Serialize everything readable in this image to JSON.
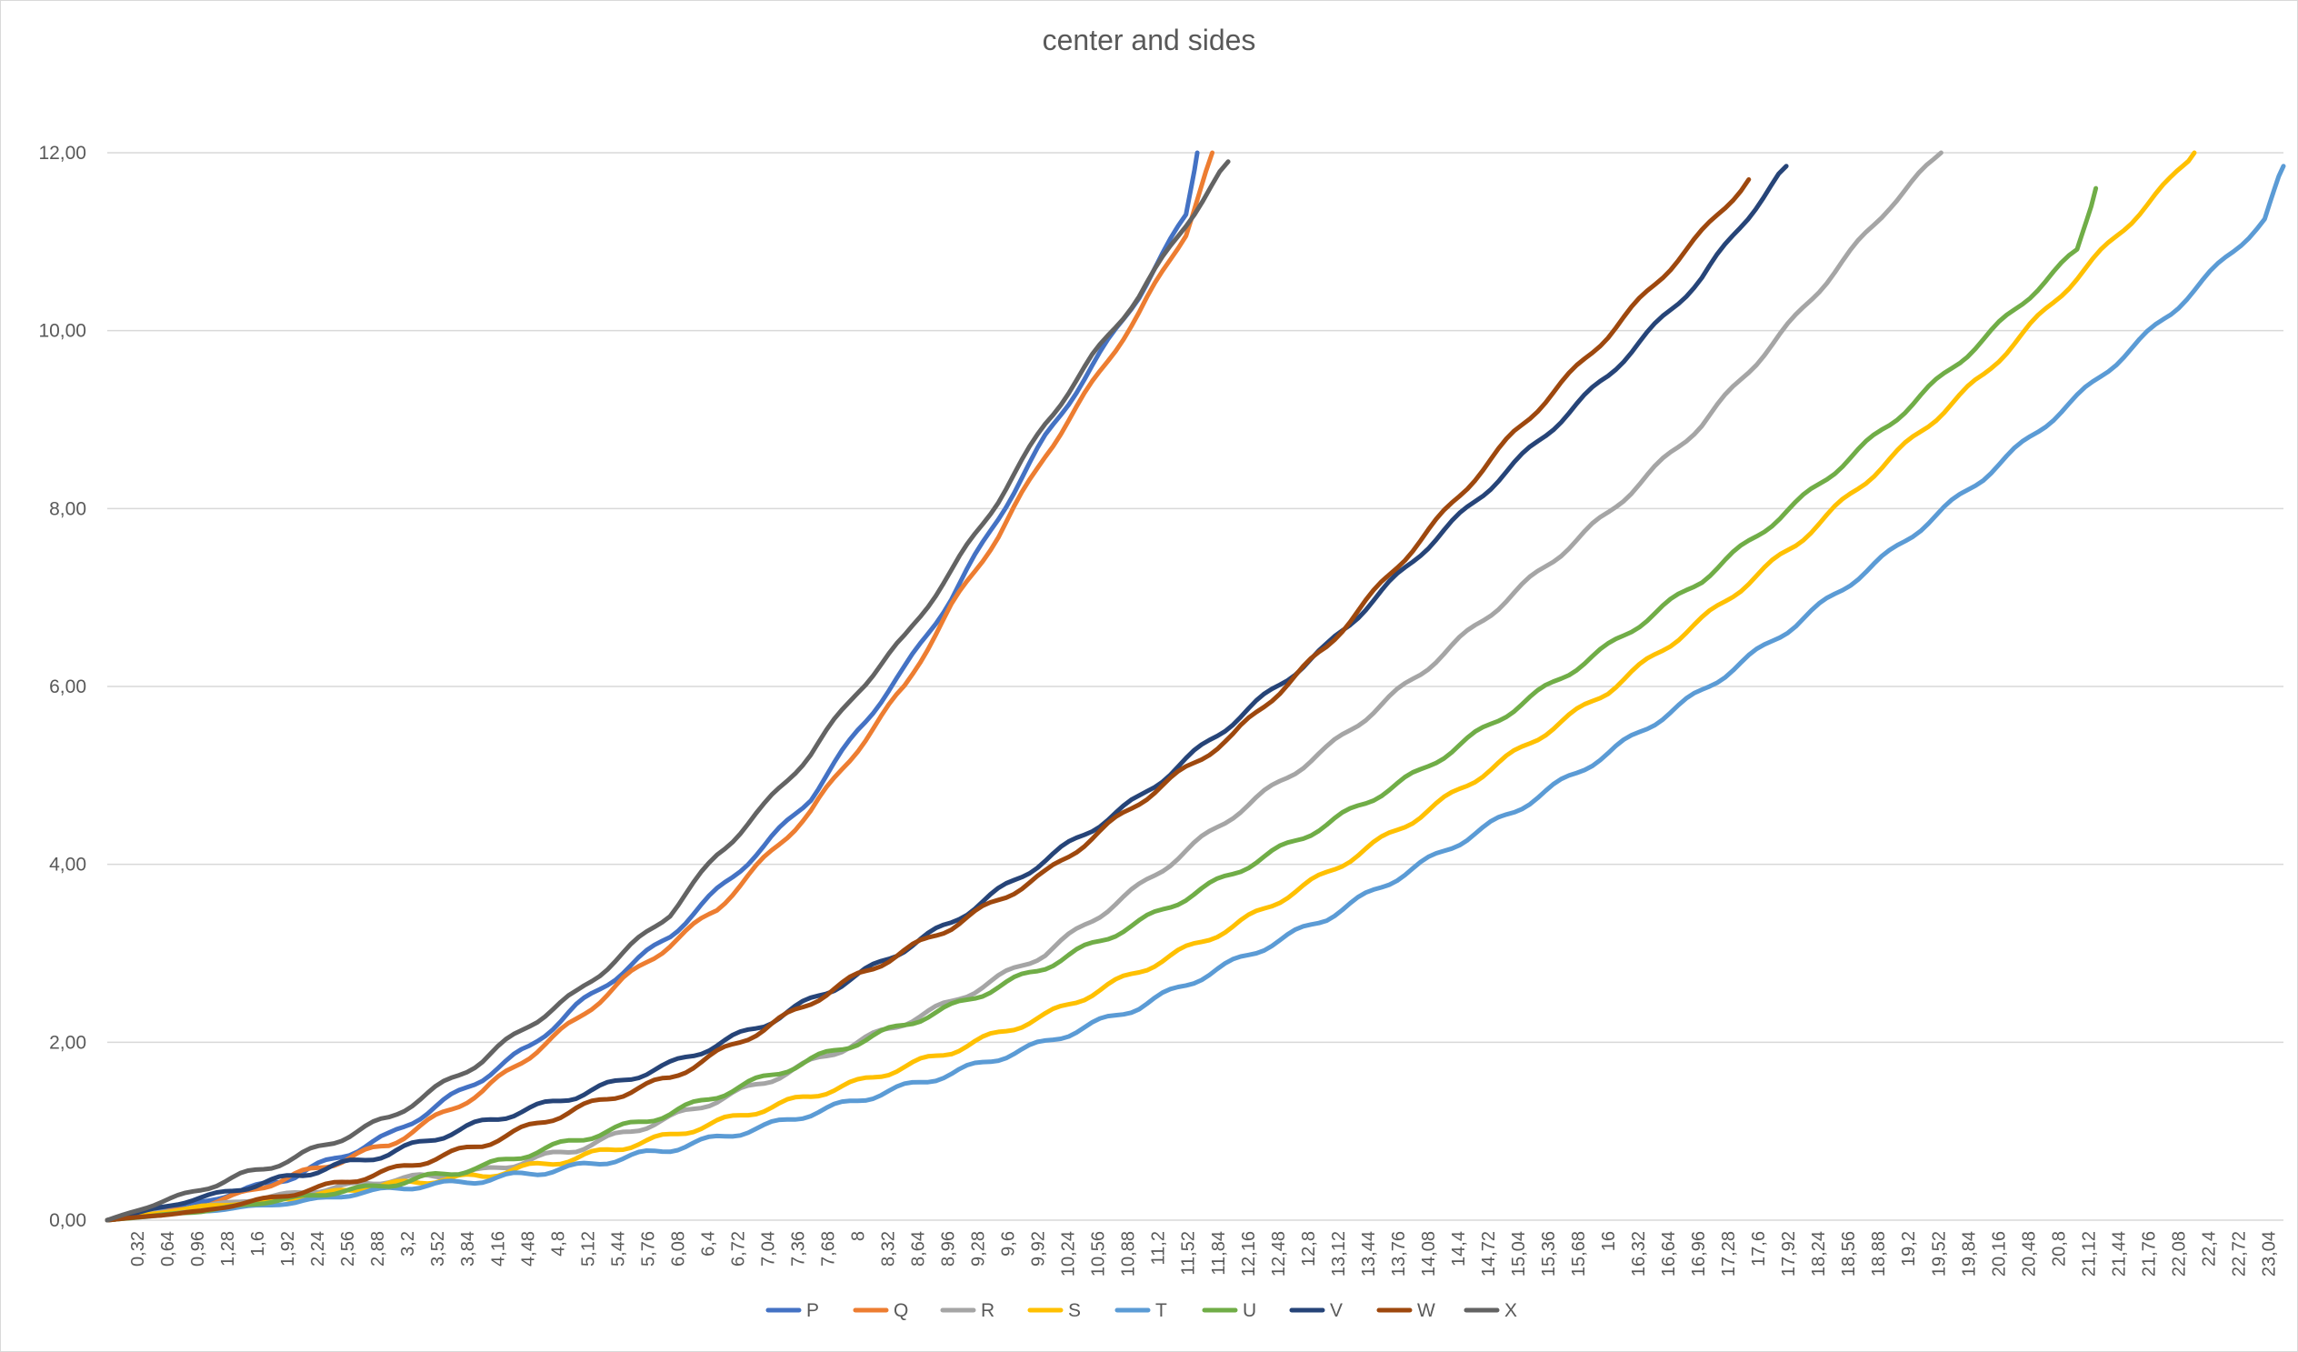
{
  "chart_data": {
    "type": "line",
    "title": "center and sides",
    "xlabel": "",
    "ylabel": "",
    "ylim": [
      0,
      12
    ],
    "xlim": [
      0,
      23.2
    ],
    "grid": true,
    "legend_position": "bottom",
    "y_ticks": [
      "0,00",
      "2,00",
      "4,00",
      "6,00",
      "8,00",
      "10,00",
      "12,00"
    ],
    "x_ticks": [
      "0,32",
      "0,64",
      "0,96",
      "1,28",
      "1,6",
      "1,92",
      "2,24",
      "2,56",
      "2,88",
      "3,2",
      "3,52",
      "3,84",
      "4,16",
      "4,48",
      "4,8",
      "5,12",
      "5,44",
      "5,76",
      "6,08",
      "6,4",
      "6,72",
      "7,04",
      "7,36",
      "7,68",
      "8",
      "8,32",
      "8,64",
      "8,96",
      "9,28",
      "9,6",
      "9,92",
      "10,24",
      "10,56",
      "10,88",
      "11,2",
      "11,52",
      "11,84",
      "12,16",
      "12,48",
      "12,8",
      "13,12",
      "13,44",
      "13,76",
      "14,08",
      "14,4",
      "14,72",
      "15,04",
      "15,36",
      "15,68",
      "16",
      "16,32",
      "16,64",
      "16,96",
      "17,28",
      "17,6",
      "17,92",
      "18,24",
      "18,56",
      "18,88",
      "19,2",
      "19,52",
      "19,84",
      "20,16",
      "20,48",
      "20,8",
      "21,12",
      "21,44",
      "21,76",
      "22,08",
      "22,4",
      "22,72",
      "23,04"
    ],
    "series": [
      {
        "name": "P",
        "color": "#4472C4",
        "points": [
          [
            0,
            0
          ],
          [
            1,
            0.2
          ],
          [
            2,
            0.5
          ],
          [
            3,
            0.95
          ],
          [
            4,
            1.6
          ],
          [
            4.5,
            1.95
          ],
          [
            5,
            2.4
          ],
          [
            5.5,
            2.8
          ],
          [
            6,
            3.2
          ],
          [
            6.5,
            3.7
          ],
          [
            7,
            4.2
          ],
          [
            7.5,
            4.75
          ],
          [
            8,
            5.5
          ],
          [
            8.5,
            6.2
          ],
          [
            9,
            7.0
          ],
          [
            9.5,
            7.9
          ],
          [
            10,
            8.8
          ],
          [
            10.5,
            9.6
          ],
          [
            11,
            10.4
          ],
          [
            11.5,
            11.3
          ],
          [
            11.62,
            12.0
          ]
        ]
      },
      {
        "name": "Q",
        "color": "#ED7D31",
        "points": [
          [
            0,
            0
          ],
          [
            1,
            0.15
          ],
          [
            2,
            0.5
          ],
          [
            3,
            0.85
          ],
          [
            4,
            1.45
          ],
          [
            4.5,
            1.85
          ],
          [
            5,
            2.25
          ],
          [
            5.5,
            2.7
          ],
          [
            6,
            3.1
          ],
          [
            6.5,
            3.5
          ],
          [
            7,
            4.05
          ],
          [
            7.5,
            4.6
          ],
          [
            8,
            5.3
          ],
          [
            8.5,
            6.0
          ],
          [
            9,
            6.9
          ],
          [
            9.5,
            7.7
          ],
          [
            10,
            8.6
          ],
          [
            10.5,
            9.4
          ],
          [
            11,
            10.2
          ],
          [
            11.5,
            11.1
          ],
          [
            11.78,
            12.0
          ]
        ]
      },
      {
        "name": "R",
        "color": "#A5A5A5",
        "points": [
          [
            0,
            0
          ],
          [
            1,
            0.15
          ],
          [
            2,
            0.3
          ],
          [
            3,
            0.45
          ],
          [
            4,
            0.55
          ],
          [
            5,
            0.8
          ],
          [
            6,
            1.15
          ],
          [
            7,
            1.55
          ],
          [
            8,
            2.0
          ],
          [
            9,
            2.45
          ],
          [
            10,
            3.0
          ],
          [
            11,
            3.75
          ],
          [
            12,
            4.55
          ],
          [
            13,
            5.3
          ],
          [
            14,
            6.15
          ],
          [
            15,
            7.05
          ],
          [
            16,
            7.95
          ],
          [
            17,
            8.95
          ],
          [
            18,
            10.15
          ],
          [
            19,
            11.4
          ],
          [
            19.55,
            12.0
          ]
        ]
      },
      {
        "name": "S",
        "color": "#FFC000",
        "points": [
          [
            0,
            0
          ],
          [
            1,
            0.15
          ],
          [
            2,
            0.25
          ],
          [
            3,
            0.4
          ],
          [
            4,
            0.5
          ],
          [
            5,
            0.7
          ],
          [
            6,
            0.95
          ],
          [
            7,
            1.25
          ],
          [
            8,
            1.55
          ],
          [
            9,
            1.9
          ],
          [
            10,
            2.3
          ],
          [
            11,
            2.8
          ],
          [
            12,
            3.3
          ],
          [
            13,
            3.9
          ],
          [
            14,
            4.55
          ],
          [
            15,
            5.25
          ],
          [
            16,
            5.95
          ],
          [
            17,
            6.75
          ],
          [
            18,
            7.6
          ],
          [
            19,
            8.55
          ],
          [
            20,
            9.5
          ],
          [
            21,
            10.6
          ],
          [
            22,
            11.7
          ],
          [
            22.25,
            12.0
          ]
        ]
      },
      {
        "name": "T",
        "color": "#5B9BD5",
        "points": [
          [
            0,
            0
          ],
          [
            1,
            0.1
          ],
          [
            2,
            0.2
          ],
          [
            3,
            0.35
          ],
          [
            4,
            0.45
          ],
          [
            5,
            0.6
          ],
          [
            6,
            0.8
          ],
          [
            7,
            1.05
          ],
          [
            8,
            1.35
          ],
          [
            9,
            1.65
          ],
          [
            10,
            2.0
          ],
          [
            11,
            2.4
          ],
          [
            12,
            2.9
          ],
          [
            13,
            3.4
          ],
          [
            14,
            4.0
          ],
          [
            15,
            4.6
          ],
          [
            16,
            5.25
          ],
          [
            17,
            5.95
          ],
          [
            18,
            6.7
          ],
          [
            19,
            7.5
          ],
          [
            20,
            8.35
          ],
          [
            21,
            9.25
          ],
          [
            22,
            10.2
          ],
          [
            23,
            11.25
          ],
          [
            23.2,
            11.85
          ]
        ]
      },
      {
        "name": "U",
        "color": "#70AD47",
        "points": [
          [
            0,
            0
          ],
          [
            1,
            0.1
          ],
          [
            2,
            0.25
          ],
          [
            3,
            0.4
          ],
          [
            4,
            0.6
          ],
          [
            5,
            0.9
          ],
          [
            6,
            1.2
          ],
          [
            7,
            1.6
          ],
          [
            8,
            2.0
          ],
          [
            9,
            2.4
          ],
          [
            10,
            2.85
          ],
          [
            11,
            3.35
          ],
          [
            12,
            3.9
          ],
          [
            13,
            4.45
          ],
          [
            14,
            5.05
          ],
          [
            15,
            5.75
          ],
          [
            16,
            6.45
          ],
          [
            17,
            7.2
          ],
          [
            18,
            8.05
          ],
          [
            19,
            8.95
          ],
          [
            20,
            9.9
          ],
          [
            21,
            10.9
          ],
          [
            21.2,
            11.6
          ]
        ]
      },
      {
        "name": "V",
        "color": "#264478",
        "points": [
          [
            0,
            0
          ],
          [
            1,
            0.25
          ],
          [
            2,
            0.5
          ],
          [
            3,
            0.75
          ],
          [
            4,
            1.1
          ],
          [
            5,
            1.4
          ],
          [
            6,
            1.75
          ],
          [
            7,
            2.2
          ],
          [
            8,
            2.75
          ],
          [
            9,
            3.35
          ],
          [
            10,
            4.05
          ],
          [
            11,
            4.75
          ],
          [
            12,
            5.6
          ],
          [
            13,
            6.45
          ],
          [
            14,
            7.5
          ],
          [
            15,
            8.5
          ],
          [
            16,
            9.5
          ],
          [
            17,
            10.6
          ],
          [
            17.9,
            11.85
          ]
        ]
      },
      {
        "name": "W",
        "color": "#9E480E",
        "points": [
          [
            0,
            0
          ],
          [
            1,
            0.1
          ],
          [
            2,
            0.3
          ],
          [
            3,
            0.55
          ],
          [
            4,
            0.85
          ],
          [
            5,
            1.25
          ],
          [
            6,
            1.6
          ],
          [
            7,
            2.15
          ],
          [
            8,
            2.75
          ],
          [
            9,
            3.3
          ],
          [
            10,
            3.9
          ],
          [
            11,
            4.7
          ],
          [
            12,
            5.45
          ],
          [
            13,
            6.45
          ],
          [
            14,
            7.65
          ],
          [
            15,
            8.85
          ],
          [
            16,
            9.95
          ],
          [
            17,
            11.1
          ],
          [
            17.5,
            11.7
          ]
        ]
      },
      {
        "name": "X",
        "color": "#636363",
        "points": [
          [
            0,
            0
          ],
          [
            1,
            0.35
          ],
          [
            2,
            0.7
          ],
          [
            3,
            1.15
          ],
          [
            4,
            1.8
          ],
          [
            4.5,
            2.2
          ],
          [
            5,
            2.55
          ],
          [
            5.5,
            3.0
          ],
          [
            6,
            3.45
          ],
          [
            6.5,
            4.1
          ],
          [
            7,
            4.65
          ],
          [
            7.5,
            5.25
          ],
          [
            8,
            5.95
          ],
          [
            8.5,
            6.55
          ],
          [
            9,
            7.3
          ],
          [
            9.5,
            8.1
          ],
          [
            10,
            8.95
          ],
          [
            10.5,
            9.7
          ],
          [
            11,
            10.4
          ],
          [
            11.5,
            11.2
          ],
          [
            11.95,
            11.9
          ]
        ]
      }
    ]
  }
}
